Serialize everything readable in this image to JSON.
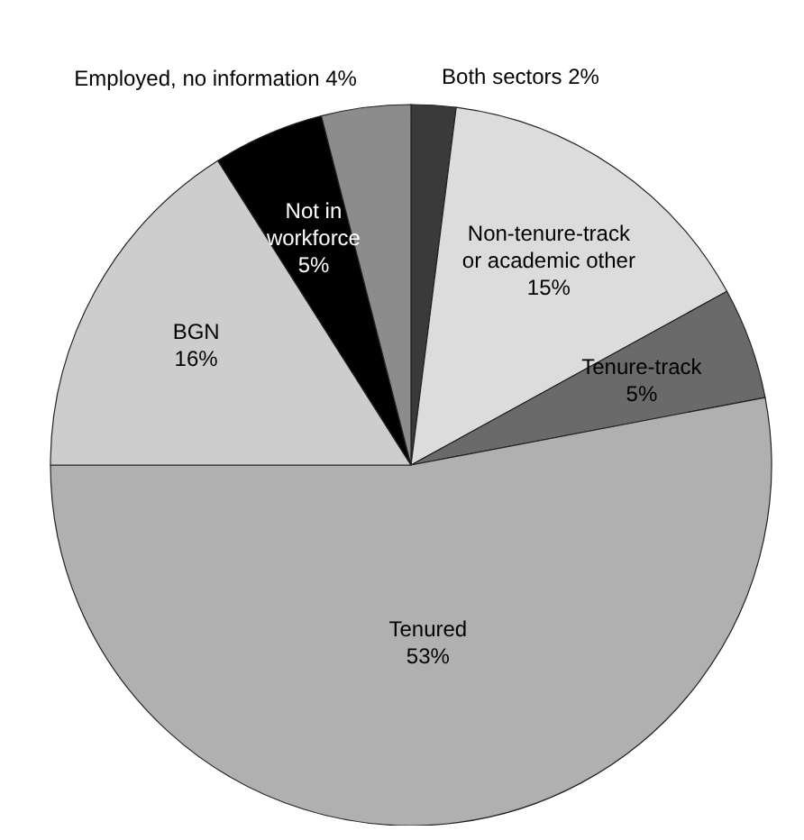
{
  "chart_data": {
    "type": "pie",
    "categories": [
      "Both sectors",
      "Non-tenure-track or academic other",
      "Tenure-track",
      "Tenured",
      "BGN",
      "Not in workforce",
      "Employed, no information"
    ],
    "values": [
      2,
      15,
      5,
      53,
      16,
      5,
      4
    ],
    "colors": [
      "#3a3a3a",
      "#dcdcdc",
      "#6a6a6a",
      "#b0b0b0",
      "#cdcdcd",
      "#000000",
      "#8c8c8c"
    ],
    "value_labels": [
      "2%",
      "15%",
      "5%",
      "53%",
      "16%",
      "5%",
      "4%"
    ]
  }
}
